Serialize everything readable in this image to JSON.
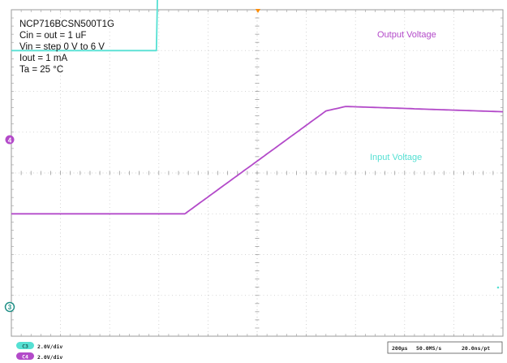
{
  "chart_data": {
    "type": "line",
    "title_lines": [
      "NCP716BCSN500T1G",
      "Cin =    out = 1 uF",
      "Vin = step 0 V to 6 V",
      "Iout = 1 mA",
      "Ta = 25 °C"
    ],
    "grid": true,
    "x_divisions": 10,
    "y_divisions": 8,
    "time_per_div_us": 200,
    "series": [
      {
        "name": "Output Voltage",
        "color": "#b34ac9",
        "channel": "C4",
        "scale": "2.0V/div",
        "ground_level_div": -1.0,
        "points": [
          {
            "t_div": 0.0,
            "v_div": 0.0
          },
          {
            "t_div": 3.53,
            "v_div": 0.0
          },
          {
            "t_div": 6.4,
            "v_div": 2.52
          },
          {
            "t_div": 6.8,
            "v_div": 2.63
          },
          {
            "t_div": 10.0,
            "v_div": 2.5
          }
        ]
      },
      {
        "name": "Input Voltage",
        "color": "#55e0d3",
        "channel": "C3",
        "scale": "2.0V/div",
        "ground_level_div": 3.0,
        "points": [
          {
            "t_div": 0.0,
            "v_div": 0.0
          },
          {
            "t_div": 2.95,
            "v_div": 0.0
          },
          {
            "t_div": 3.0,
            "v_div": 3.0
          },
          {
            "t_div": 10.0,
            "v_div": 3.0
          }
        ]
      }
    ]
  },
  "status_bar": {
    "ch3_label": "C3",
    "ch3_scale": "2.0V/div",
    "ch4_label": "C4",
    "ch4_scale": "2.0V/div",
    "timebase": "200µs",
    "sample_rate": "50.0MS/s",
    "resolution": "20.0ns/pt"
  },
  "markers": {
    "trigger_marker_color": "#ff8c00",
    "ch4_marker_label": "4",
    "ch3_marker_label": "3"
  }
}
